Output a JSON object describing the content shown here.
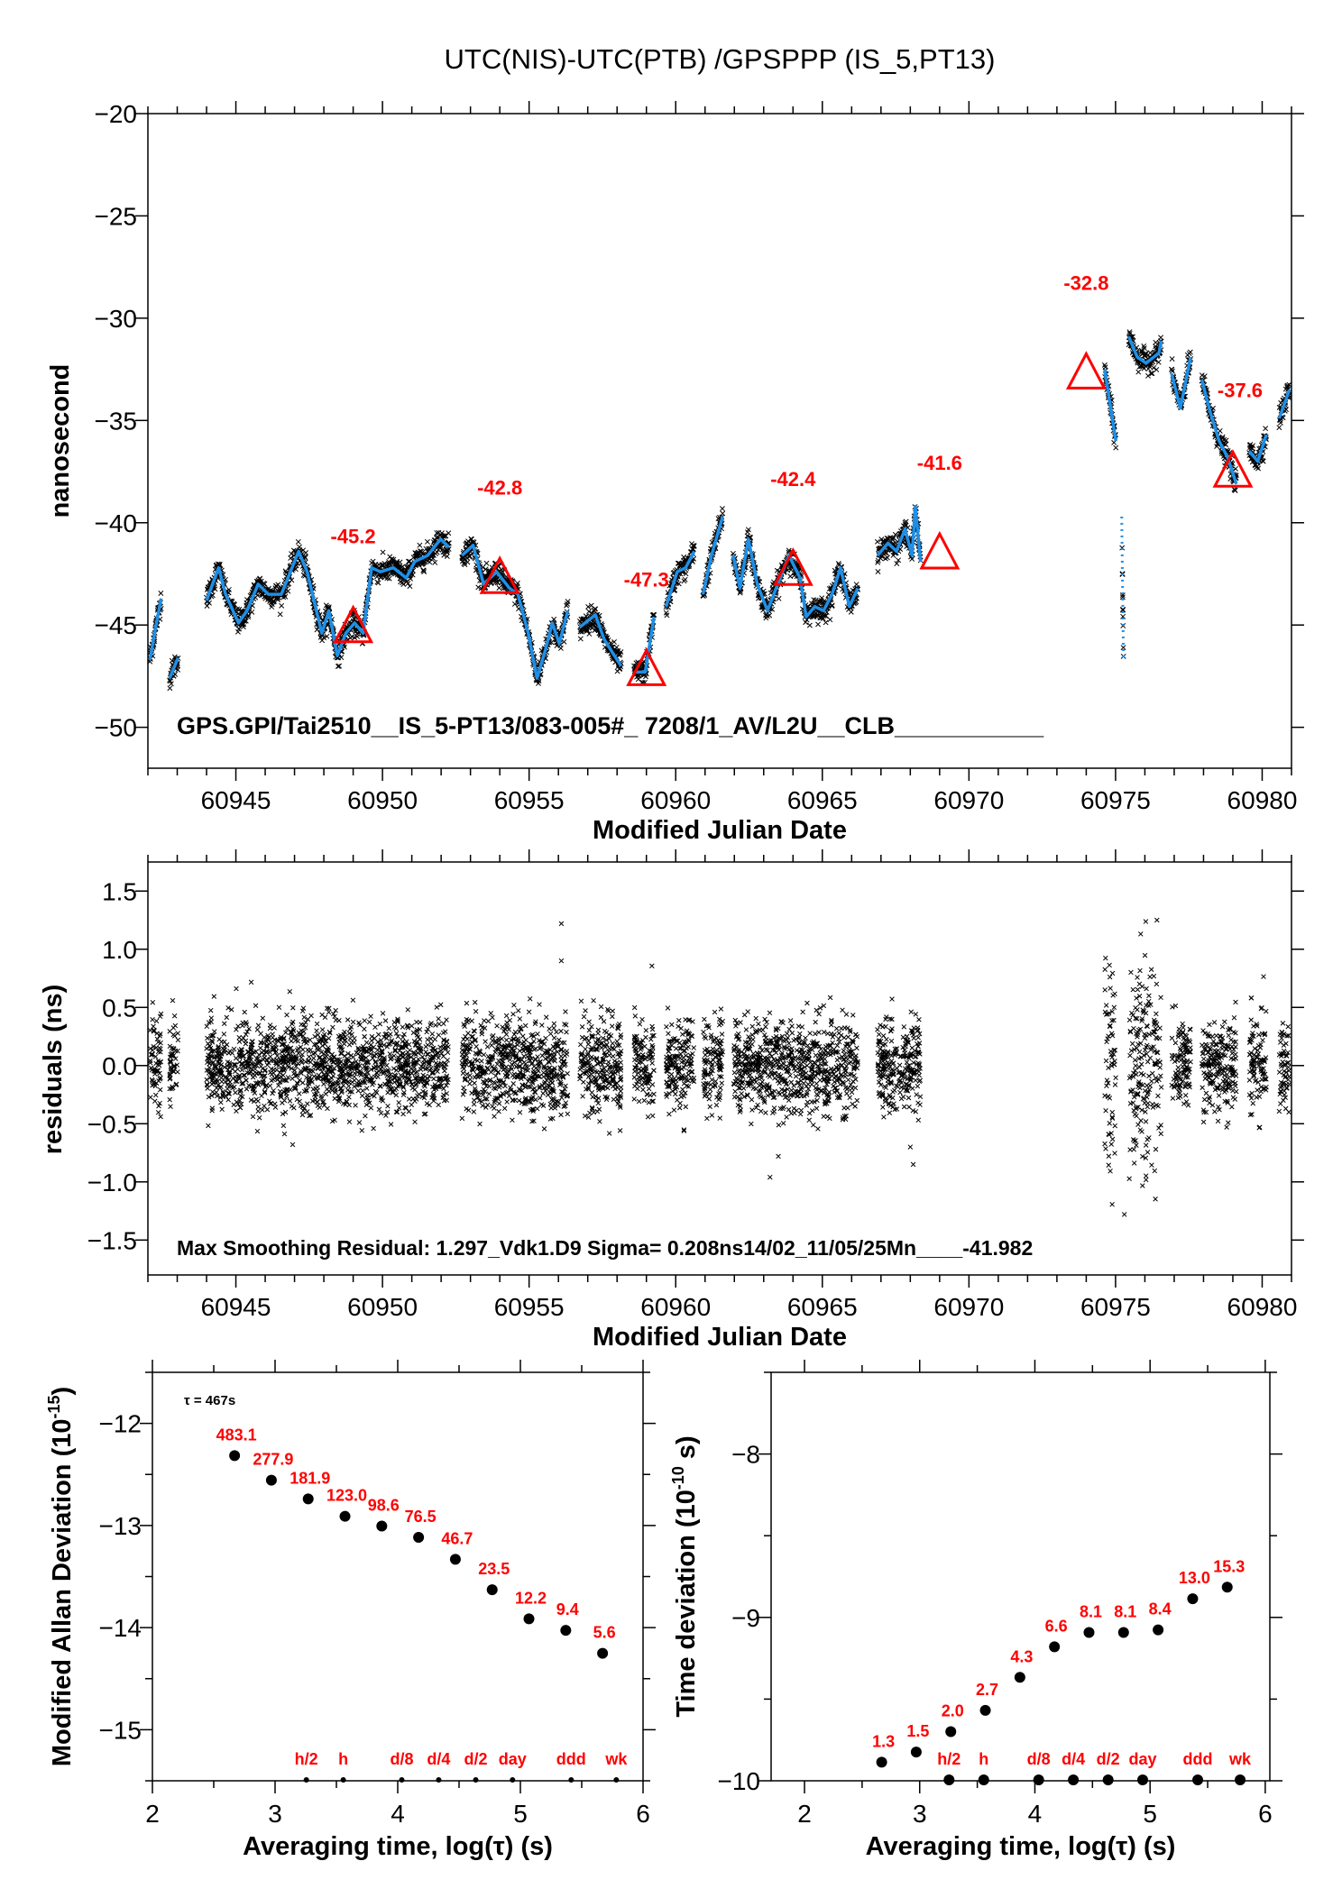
{
  "title": "UTC(NIS)-UTC(PTB)  /GPSPPP  (IS_5,PT13)",
  "colors": {
    "trace": "#1e8fe6",
    "points": "#000000",
    "markers": "#ff0000"
  },
  "chart_data": [
    {
      "type": "line+scatter",
      "xlabel": "Modified Julian Date",
      "ylabel": "nanosecond",
      "xlim": [
        60942,
        60981
      ],
      "ylim": [
        -52,
        -20
      ],
      "grid": false,
      "xticks": [
        60945,
        60950,
        60955,
        60960,
        60965,
        60970,
        60975,
        60980
      ],
      "xtick_labels": [
        "60945",
        "60950",
        "60955",
        "60960",
        "60965",
        "60970",
        "60975",
        "60980"
      ],
      "yticks": [
        -20,
        -25,
        -30,
        -35,
        -40,
        -45,
        -50
      ],
      "ytick_labels": [
        "−20",
        "−25",
        "−30",
        "−35",
        "−40",
        "−45",
        "−50"
      ],
      "annotation": "GPS.GPI/Tai2510__IS_5-PT13/083-005#_  7208/1_AV/L2U__CLB___________",
      "segments": [
        [
          [
            60942.07,
            -46.7
          ],
          [
            60942.24,
            -45.3
          ],
          [
            60942.45,
            -43.7
          ]
        ],
        [
          [
            60942.74,
            -47.6
          ],
          [
            60943.03,
            -46.6
          ]
        ],
        [
          [
            60944.0,
            -43.8
          ],
          [
            60944.41,
            -42.2
          ],
          [
            60944.65,
            -43.5
          ],
          [
            60945.09,
            -44.9
          ],
          [
            60945.38,
            -44.3
          ],
          [
            60945.76,
            -43.0
          ],
          [
            60946.11,
            -43.5
          ],
          [
            60946.55,
            -43.5
          ],
          [
            60947.14,
            -41.4
          ],
          [
            60947.43,
            -42.4
          ],
          [
            60947.93,
            -45.4
          ],
          [
            60948.17,
            -44.3
          ],
          [
            60948.46,
            -46.5
          ],
          [
            60948.75,
            -45.4
          ],
          [
            60949.05,
            -44.9
          ],
          [
            60949.34,
            -45.4
          ],
          [
            60949.63,
            -42.2
          ],
          [
            60949.93,
            -42.4
          ],
          [
            60950.37,
            -42.2
          ],
          [
            60950.81,
            -42.7
          ],
          [
            60951.1,
            -41.9
          ],
          [
            60951.54,
            -41.6
          ],
          [
            60951.98,
            -40.8
          ],
          [
            60952.27,
            -41.2
          ]
        ],
        [
          [
            60952.71,
            -41.6
          ],
          [
            60953.09,
            -41.1
          ],
          [
            60953.45,
            -43.0
          ],
          [
            60953.89,
            -42.4
          ],
          [
            60954.33,
            -43.2
          ],
          [
            60954.62,
            -43.5
          ],
          [
            60954.97,
            -45.4
          ],
          [
            60955.27,
            -47.6
          ],
          [
            60955.56,
            -46.2
          ],
          [
            60955.79,
            -44.9
          ],
          [
            60956.03,
            -45.9
          ],
          [
            60956.32,
            -44.3
          ]
        ],
        [
          [
            60956.73,
            -45.1
          ],
          [
            60957.26,
            -44.5
          ],
          [
            60957.56,
            -45.7
          ],
          [
            60957.91,
            -46.5
          ],
          [
            60958.14,
            -47.0
          ]
        ],
        [
          [
            60958.58,
            -47.3
          ],
          [
            60958.96,
            -47.3
          ],
          [
            60959.26,
            -44.6
          ]
        ],
        [
          [
            60959.67,
            -44.1
          ],
          [
            60960.05,
            -42.4
          ],
          [
            60960.34,
            -42.2
          ],
          [
            60960.63,
            -41.4
          ]
        ],
        [
          [
            60960.93,
            -43.5
          ],
          [
            60961.22,
            -41.6
          ],
          [
            60961.6,
            -39.7
          ]
        ],
        [
          [
            60961.96,
            -41.6
          ],
          [
            60962.19,
            -43.2
          ],
          [
            60962.48,
            -40.8
          ],
          [
            60962.78,
            -43.0
          ],
          [
            60963.13,
            -44.3
          ],
          [
            60963.48,
            -43.0
          ],
          [
            60963.86,
            -41.6
          ],
          [
            60964.24,
            -42.7
          ],
          [
            60964.45,
            -44.6
          ],
          [
            60964.74,
            -44.1
          ],
          [
            60965.04,
            -44.3
          ],
          [
            60965.33,
            -43.5
          ],
          [
            60965.62,
            -42.2
          ],
          [
            60965.92,
            -44.1
          ],
          [
            60966.21,
            -43.2
          ]
        ],
        [
          [
            60966.88,
            -41.6
          ],
          [
            60967.24,
            -41.0
          ],
          [
            60967.53,
            -41.4
          ],
          [
            60967.82,
            -40.3
          ],
          [
            60968.06,
            -41.6
          ],
          [
            60968.17,
            -39.2
          ],
          [
            60968.35,
            -41.9
          ]
        ],
        [
          [
            60974.63,
            -32.5
          ],
          [
            60974.8,
            -34.1
          ],
          [
            60975.01,
            -36.0
          ]
        ],
        [
          [
            60975.45,
            -30.9
          ],
          [
            60975.74,
            -31.9
          ],
          [
            60976.04,
            -32.2
          ],
          [
            60976.48,
            -31.7
          ],
          [
            60976.56,
            -31.1
          ]
        ],
        [
          [
            60976.91,
            -32.7
          ],
          [
            60977.21,
            -34.4
          ],
          [
            60977.56,
            -31.9
          ]
        ],
        [
          [
            60977.94,
            -33.0
          ],
          [
            60978.23,
            -34.6
          ],
          [
            60978.53,
            -36.0
          ],
          [
            60978.82,
            -36.8
          ],
          [
            60979.12,
            -38.1
          ]
        ],
        [
          [
            60979.56,
            -36.5
          ],
          [
            60979.85,
            -37.0
          ],
          [
            60980.14,
            -35.7
          ]
        ],
        [
          [
            60980.58,
            -34.9
          ],
          [
            60980.93,
            -33.5
          ]
        ]
      ],
      "sparse_segment": [
        [
          60975.21,
          -39.7
        ],
        [
          60975.27,
          -46.7
        ]
      ],
      "markers": [
        {
          "mjd": 60949,
          "value": -45.2,
          "label": "-45.2"
        },
        {
          "mjd": 60954,
          "value": -42.8,
          "label": "-42.8"
        },
        {
          "mjd": 60959,
          "value": -47.3,
          "label": "-47.3"
        },
        {
          "mjd": 60964,
          "value": -42.4,
          "label": "-42.4"
        },
        {
          "mjd": 60969,
          "value": -41.6,
          "label": "-41.6"
        },
        {
          "mjd": 60974,
          "value": -32.8,
          "label": "-32.8"
        },
        {
          "mjd": 60979,
          "value": -37.6,
          "label": "-37.6"
        }
      ]
    },
    {
      "type": "scatter",
      "xlabel": "Modified Julian Date",
      "ylabel": "residuals (ns)",
      "xlim": [
        60942,
        60981
      ],
      "ylim": [
        -1.8,
        1.75
      ],
      "grid": false,
      "xticks": [
        60945,
        60950,
        60955,
        60960,
        60965,
        60970,
        60975,
        60980
      ],
      "xtick_labels": [
        "60945",
        "60950",
        "60955",
        "60960",
        "60965",
        "60970",
        "60975",
        "60980"
      ],
      "yticks": [
        1.5,
        1.0,
        0.5,
        0.0,
        -0.5,
        -1.0,
        -1.5
      ],
      "ytick_labels": [
        "1.5",
        "1.0",
        "0.5",
        "0.0",
        "−0.5",
        "−1.0",
        "−1.5"
      ],
      "annotation": "Max Smoothing Residual: 1.297_Vdk1.D9  Sigma= 0.208ns14/02_11/05/25Mn____-41.982",
      "sigma": 0.208,
      "max_residual": 1.297
    },
    {
      "type": "scatter",
      "xlabel": "Averaging time, log(τ) (s)",
      "ylabel_main": "Modified Allan Deviation (10",
      "ylabel_exp": "-15",
      "ylabel_end": ")",
      "tau_label": "τ = 467s",
      "xlim": [
        2,
        6
      ],
      "ylim": [
        -15.5,
        -11.5
      ],
      "xticks": [
        2,
        3,
        4,
        5,
        6
      ],
      "xtick_labels": [
        "2",
        "3",
        "4",
        "5",
        "6"
      ],
      "yticks": [
        -12,
        -13,
        -14,
        -15
      ],
      "ytick_labels": [
        "−12",
        "−13",
        "−14",
        "−15"
      ],
      "x": [
        2.67,
        2.97,
        3.27,
        3.57,
        3.87,
        4.17,
        4.47,
        4.77,
        5.07,
        5.37,
        5.67
      ],
      "y": [
        -12.316,
        -12.556,
        -12.74,
        -12.91,
        -13.006,
        -13.116,
        -13.331,
        -13.629,
        -13.914,
        -14.027,
        -14.252
      ],
      "point_labels": [
        "483.1",
        "277.9",
        "181.9",
        "123.0",
        "98.6",
        "76.5",
        "46.7",
        "23.5",
        "12.2",
        "9.4",
        "5.6"
      ],
      "interval_markers": [
        {
          "x": 3.255,
          "label": "h/2"
        },
        {
          "x": 3.556,
          "label": "h"
        },
        {
          "x": 4.033,
          "label": "d/8"
        },
        {
          "x": 4.334,
          "label": "d/4"
        },
        {
          "x": 4.636,
          "label": "d/2"
        },
        {
          "x": 4.936,
          "label": "day"
        },
        {
          "x": 5.414,
          "label": "ddd"
        },
        {
          "x": 5.782,
          "label": "wk"
        }
      ]
    },
    {
      "type": "scatter",
      "xlabel": "Averaging time, log(τ) (s)",
      "ylabel_main": "Time deviation (10",
      "ylabel_exp": "-10",
      "ylabel_end": " s)",
      "xlim": [
        1.71,
        6.04
      ],
      "ylim": [
        -10,
        -7.5
      ],
      "xticks": [
        2,
        3,
        4,
        5,
        6
      ],
      "xtick_labels": [
        "2",
        "3",
        "4",
        "5",
        "6"
      ],
      "yticks": [
        -8,
        -9,
        -10
      ],
      "ytick_labels": [
        "−8",
        "−9",
        "−10"
      ],
      "x": [
        2.67,
        2.97,
        3.27,
        3.57,
        3.87,
        4.17,
        4.47,
        4.77,
        5.07,
        5.37,
        5.67
      ],
      "y": [
        -9.886,
        -9.824,
        -9.699,
        -9.569,
        -9.367,
        -9.18,
        -9.092,
        -9.092,
        -9.076,
        -8.886,
        -8.815
      ],
      "point_labels": [
        "1.3",
        "1.5",
        "2.0",
        "2.7",
        "4.3",
        "6.6",
        "8.1",
        "8.1",
        "8.4",
        "13.0",
        "15.3"
      ],
      "interval_markers": [
        {
          "x": 3.255,
          "label": "h/2"
        },
        {
          "x": 3.556,
          "label": "h"
        },
        {
          "x": 4.033,
          "label": "d/8"
        },
        {
          "x": 4.334,
          "label": "d/4"
        },
        {
          "x": 4.636,
          "label": "d/2"
        },
        {
          "x": 4.936,
          "label": "day"
        },
        {
          "x": 5.414,
          "label": "ddd"
        },
        {
          "x": 5.782,
          "label": "wk"
        }
      ]
    }
  ]
}
